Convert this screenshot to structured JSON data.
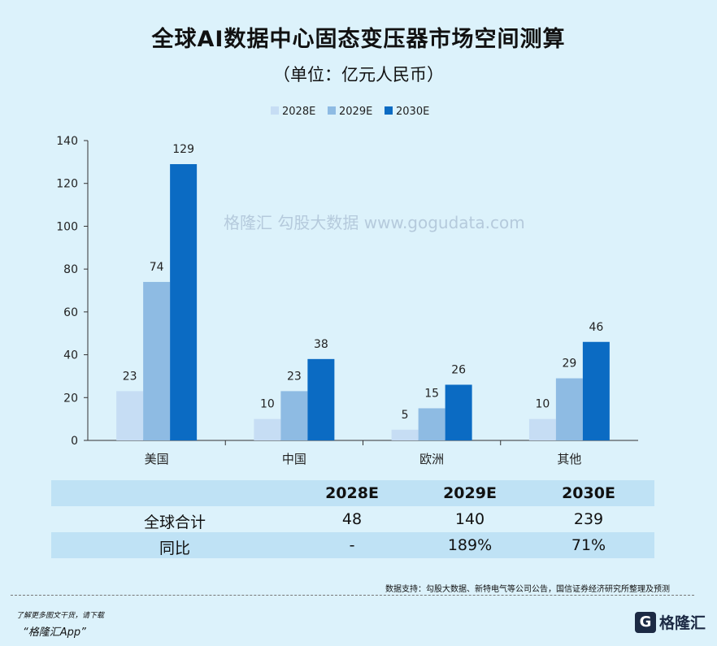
{
  "chart_data": {
    "type": "bar",
    "title": "全球AI数据中心固态变压器市场空间测算",
    "subtitle": "（单位：亿元人民币）",
    "categories": [
      "美国",
      "中国",
      "欧洲",
      "其他"
    ],
    "series": [
      {
        "name": "2028E",
        "color": "#c6ddf4",
        "values": [
          23,
          10,
          5,
          10
        ]
      },
      {
        "name": "2029E",
        "color": "#8ebbe3",
        "values": [
          74,
          23,
          15,
          29
        ]
      },
      {
        "name": "2030E",
        "color": "#0b6bc3",
        "values": [
          129,
          38,
          26,
          46
        ]
      }
    ],
    "ylim": [
      0,
      140
    ],
    "yticks": [
      0,
      20,
      40,
      60,
      80,
      100,
      120,
      140
    ],
    "legend_position": "top-center",
    "grid": false
  },
  "table": {
    "headers": [
      "",
      "2028E",
      "2029E",
      "2030E"
    ],
    "rows": [
      [
        "全球合计",
        "48",
        "140",
        "239"
      ],
      [
        "同比",
        "-",
        "189%",
        "71%"
      ]
    ]
  },
  "watermark": "格隆汇 勾股大数据 www.gogudata.com",
  "source": "数据支持：勾股大数据、新特电气等公司公告，国信证券经济研究所整理及预测",
  "promo": {
    "line1": "了解更多图文干货，请下载",
    "line2": "“格隆汇App”"
  },
  "logo": {
    "mark": "G",
    "text": "格隆汇"
  }
}
